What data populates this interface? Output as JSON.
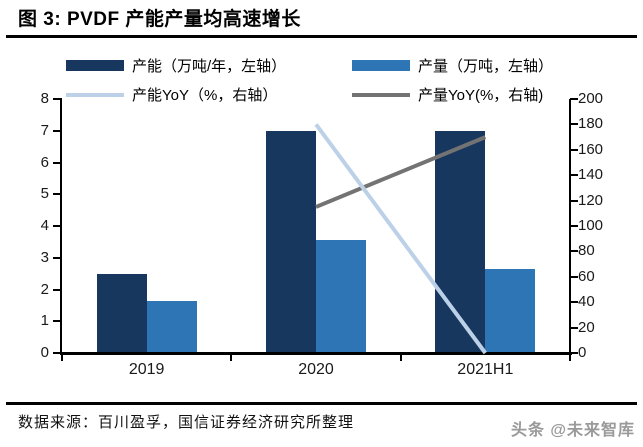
{
  "title": "图 3: PVDF 产能产量均高速增长",
  "source_note": "数据来源：百川盈孚，国信证券经济研究所整理",
  "watermark": "头条 @未来智库",
  "colors": {
    "capacity_bar": "#17375E",
    "production_bar": "#2E75B6",
    "capacity_yoy_line": "#BCD1E8",
    "production_yoy_line": "#737373",
    "axis": "#000000",
    "tick_label": "#1A1A1A"
  },
  "chart_data": {
    "type": "bar+line",
    "title": "图 3: PVDF 产能产量均高速增长",
    "categories": [
      "2019",
      "2020",
      "2021H1"
    ],
    "series": [
      {
        "name": "产能（万吨/年，左轴）",
        "kind": "bar",
        "axis": "left",
        "color": "#17375E",
        "values": [
          2.5,
          7,
          7
        ]
      },
      {
        "name": "产量（万吨，左轴）",
        "kind": "bar",
        "axis": "left",
        "color": "#2E75B6",
        "values": [
          1.65,
          3.55,
          2.65
        ]
      },
      {
        "name": "产能YoY（%，右轴）",
        "kind": "line",
        "axis": "right",
        "color": "#BCD1E8",
        "values": [
          null,
          180,
          0
        ]
      },
      {
        "name": "产量YoY(%，右轴)",
        "kind": "line",
        "axis": "right",
        "color": "#737373",
        "values": [
          null,
          115,
          170
        ]
      }
    ],
    "left_axis": {
      "min": 0,
      "max": 8,
      "ticks": [
        0,
        1,
        2,
        3,
        4,
        5,
        6,
        7,
        8
      ]
    },
    "right_axis": {
      "min": 0,
      "max": 200,
      "ticks": [
        0,
        20,
        40,
        60,
        80,
        100,
        120,
        140,
        160,
        180,
        200
      ]
    },
    "grid": false,
    "legend_position": "top"
  }
}
